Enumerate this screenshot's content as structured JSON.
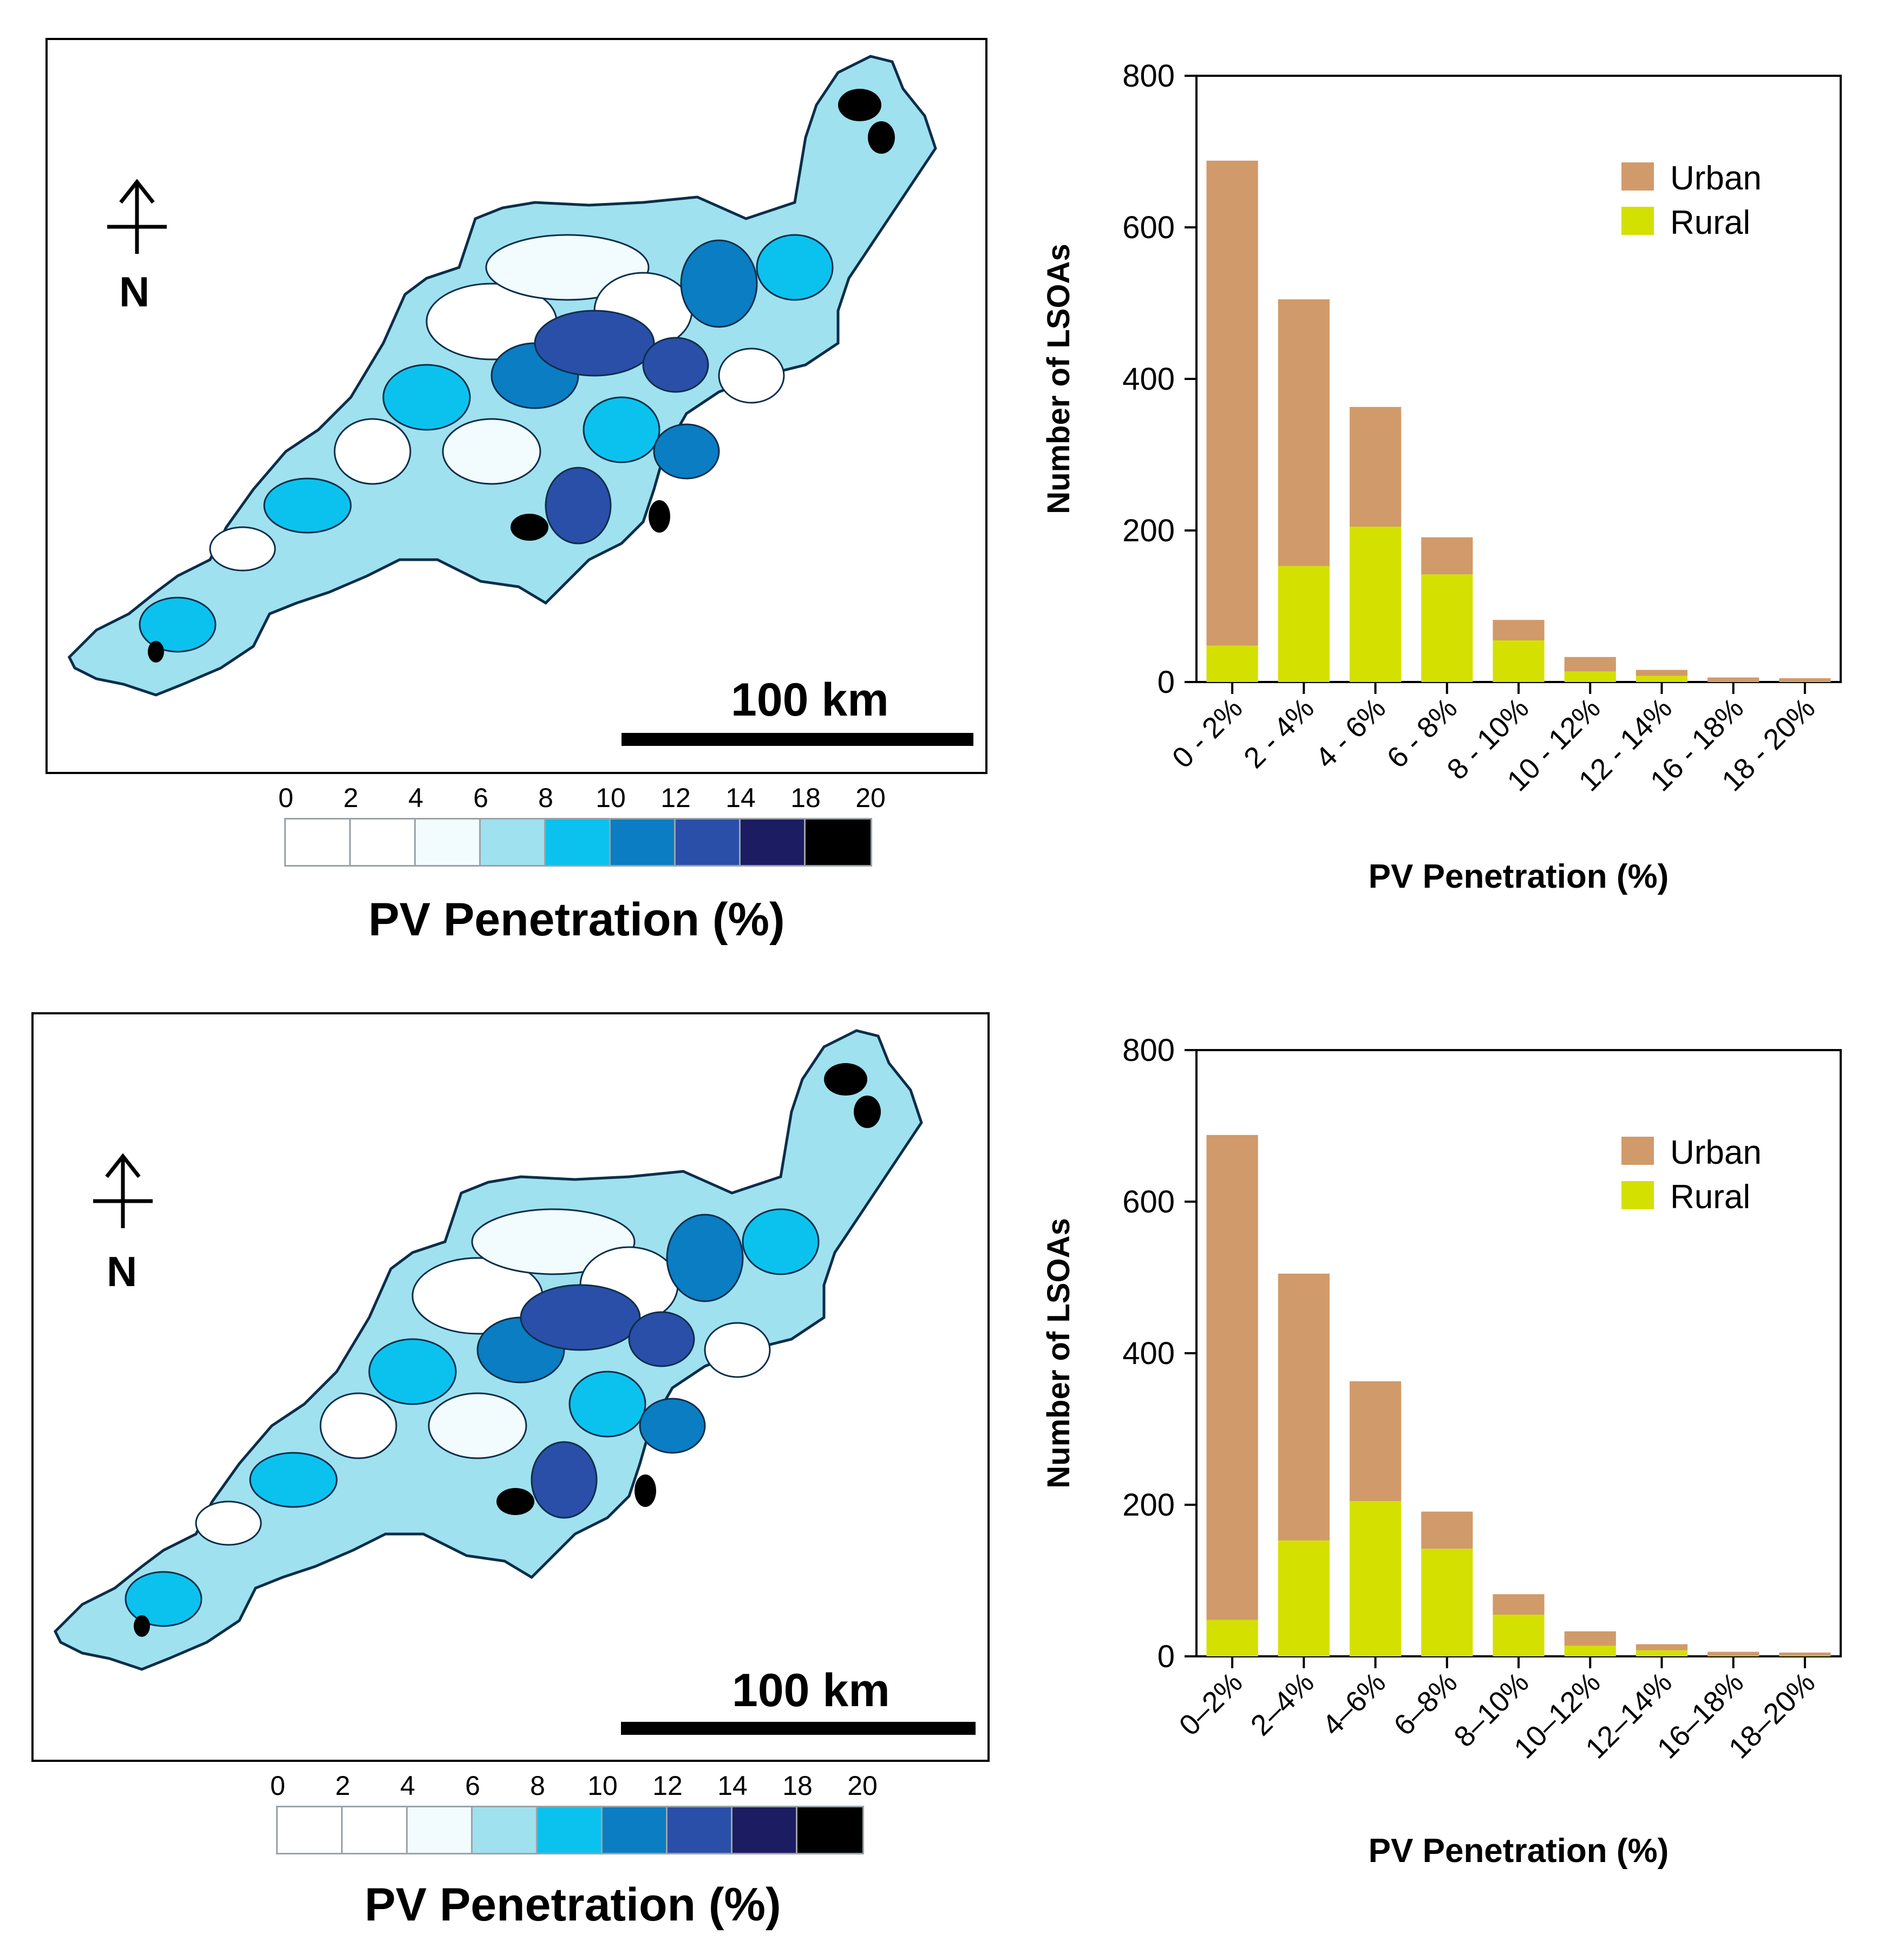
{
  "panels": [
    {
      "map": {
        "scale_label": "100 km",
        "north_label": "N"
      },
      "legend": {
        "ticks": [
          "0",
          "2",
          "4",
          "6",
          "8",
          "10",
          "12",
          "14",
          "18",
          "20"
        ],
        "colors": [
          "#ffffff",
          "#ffffff",
          "#f2fbfd",
          "#9fe1ef",
          "#0bc2ee",
          "#0a7dc3",
          "#2a4fa8",
          "#1c1c62",
          "#000000"
        ],
        "title": "PV Penetration (%)"
      }
    },
    {
      "map": {
        "scale_label": "100 km",
        "north_label": "N"
      },
      "legend": {
        "ticks": [
          "0",
          "2",
          "4",
          "6",
          "8",
          "10",
          "12",
          "14",
          "18",
          "20"
        ],
        "colors": [
          "#ffffff",
          "#ffffff",
          "#f2fbfd",
          "#9fe1ef",
          "#0bc2ee",
          "#0a7dc3",
          "#2a4fa8",
          "#1c1c62",
          "#000000"
        ],
        "title": "PV Penetration (%)"
      }
    }
  ],
  "chart_data": [
    {
      "type": "bar",
      "stacked": true,
      "categories": [
        "0 - 2%",
        "2 - 4%",
        "4 - 6%",
        "6 - 8%",
        "8 - 10%",
        "10 - 12%",
        "12 - 14%",
        "16 - 18%",
        "18 - 20%"
      ],
      "series": [
        {
          "name": "Rural",
          "color": "#d4e000",
          "values": [
            48,
            153,
            205,
            142,
            55,
            14,
            8,
            1,
            1
          ]
        },
        {
          "name": "Urban",
          "color": "#d19a6a",
          "values": [
            640,
            352,
            158,
            49,
            27,
            19,
            8,
            5,
            4
          ]
        }
      ],
      "legend_order": [
        "Urban",
        "Rural"
      ],
      "legend_position": "top-right",
      "title": "",
      "xlabel": "PV Penetration (%)",
      "ylabel": "Number of LSOAs",
      "ylim": [
        0,
        800
      ],
      "yticks": [
        0,
        200,
        400,
        600,
        800
      ]
    },
    {
      "type": "bar",
      "stacked": true,
      "categories": [
        "0–2%",
        "2–4%",
        "4–6%",
        "6–8%",
        "8–10%",
        "10–12%",
        "12–14%",
        "16–18%",
        "18–20%"
      ],
      "series": [
        {
          "name": "Rural",
          "color": "#d4e000",
          "values": [
            48,
            153,
            205,
            142,
            55,
            14,
            8,
            1,
            1
          ]
        },
        {
          "name": "Urban",
          "color": "#d19a6a",
          "values": [
            640,
            352,
            158,
            49,
            27,
            19,
            8,
            5,
            4
          ]
        }
      ],
      "legend_order": [
        "Urban",
        "Rural"
      ],
      "legend_position": "top-right",
      "title": "",
      "xlabel": "PV Penetration (%)",
      "ylabel": "Number of LSOAs",
      "ylim": [
        0,
        800
      ],
      "yticks": [
        0,
        200,
        400,
        600,
        800
      ]
    }
  ]
}
